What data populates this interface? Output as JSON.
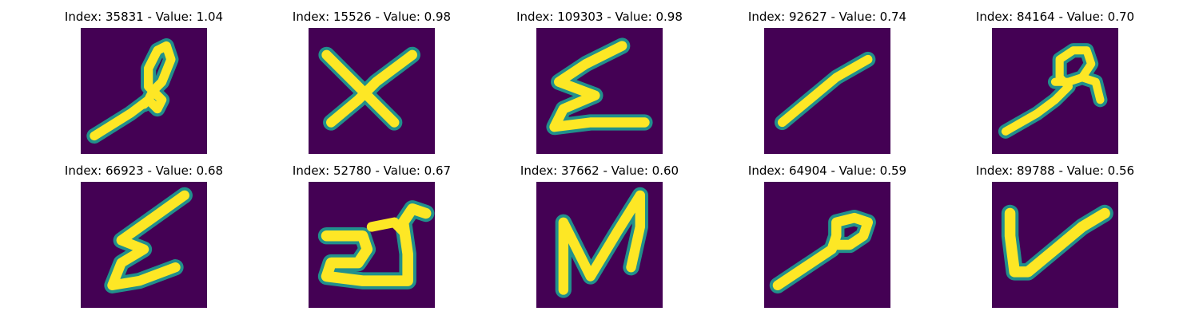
{
  "figure": {
    "background": "#ffffff",
    "image_colormap": [
      "#440154",
      "#21908c",
      "#fde725"
    ],
    "panels": [
      {
        "title": "Index: 35831 - Value: 1.04",
        "glyph": "loop-stroke-a"
      },
      {
        "title": "Index: 15526 - Value: 0.98",
        "glyph": "x-cross"
      },
      {
        "title": "Index: 109303 - Value: 0.98",
        "glyph": "zigzag-e"
      },
      {
        "title": "Index: 92627 - Value: 0.74",
        "glyph": "diagonal-slash"
      },
      {
        "title": "Index: 84164 - Value: 0.70",
        "glyph": "loop-stroke-b"
      },
      {
        "title": "Index: 66923 - Value: 0.68",
        "glyph": "zigzag-e-tall"
      },
      {
        "title": "Index: 52780 - Value: 0.67",
        "glyph": "arabic-like"
      },
      {
        "title": "Index: 37662 - Value: 0.60",
        "glyph": "n-shape"
      },
      {
        "title": "Index: 64904 - Value: 0.59",
        "glyph": "loop-stroke-c"
      },
      {
        "title": "Index: 89788 - Value: 0.56",
        "glyph": "check-v"
      }
    ]
  }
}
